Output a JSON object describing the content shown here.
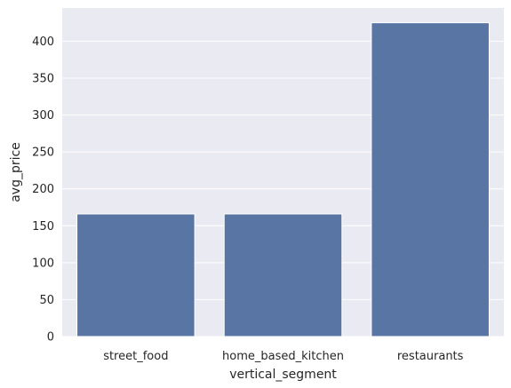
{
  "chart_data": {
    "type": "bar",
    "title": "",
    "xlabel": "vertical_segment",
    "ylabel": "avg_price",
    "categories": [
      "street_food",
      "home_based_kitchen",
      "restaurants"
    ],
    "values": [
      166,
      166,
      425
    ],
    "ylim": [
      0,
      445
    ],
    "yticks": [
      0,
      50,
      100,
      150,
      200,
      250,
      300,
      350,
      400
    ],
    "grid": true,
    "legend": "none"
  },
  "colors": {
    "bar": "#5975a4",
    "background": "#eaeaf2",
    "grid": "#ffffff"
  }
}
